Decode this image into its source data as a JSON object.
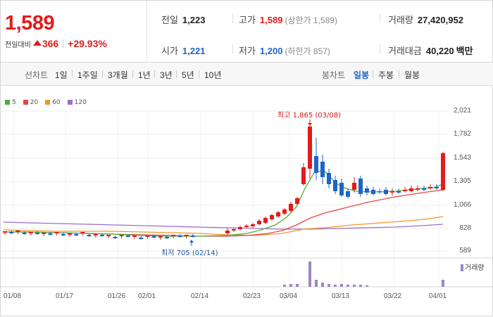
{
  "quote": {
    "price": "1,589",
    "change_label": "전일대비",
    "change_value": "366",
    "change_pct": "+29.93%",
    "prev_close_label": "전일",
    "prev_close": "1,223",
    "high_label": "고가",
    "high": "1,589",
    "high_sub": "(상한가 1,589)",
    "volume_label": "거래량",
    "volume": "27,420,952",
    "open_label": "시가",
    "open": "1,221",
    "low_label": "저가",
    "low": "1,200",
    "low_sub": "(하한가 857)",
    "amount_label": "거래대금",
    "amount": "40,220",
    "amount_unit": "백만"
  },
  "toolbar": {
    "line_label": "선차트",
    "line_periods": [
      "1일",
      "1주일",
      "3개월",
      "1년",
      "3년",
      "5년",
      "10년"
    ],
    "candle_label": "봉차트",
    "candle_periods": [
      "일봉",
      "주봉",
      "월봉"
    ],
    "active_candle": "일봉"
  },
  "legend": [
    {
      "label": "5",
      "color": "#4caf3c"
    },
    {
      "label": "20",
      "color": "#e84545"
    },
    {
      "label": "60",
      "color": "#f0962c"
    },
    {
      "label": "120",
      "color": "#9a6fc8"
    }
  ],
  "annotations": {
    "high": "최고 1,865 (03/08)",
    "low": "최저 705 (02/14)"
  },
  "volume_label": "거래량",
  "chart_data": {
    "type": "candlestick",
    "y_ticks": [
      "2,021",
      "1,782",
      "1,543",
      "1,305",
      "1,066",
      "828",
      "589"
    ],
    "ylim": [
      589,
      2021
    ],
    "x_ticks": [
      "01/08",
      "01/17",
      "01/26",
      "02/01",
      "02/14",
      "02/23",
      "03/04",
      "03/13",
      "03/22",
      "04/01"
    ],
    "up_color": "#e31b1b",
    "down_color": "#1e65c8"
  }
}
